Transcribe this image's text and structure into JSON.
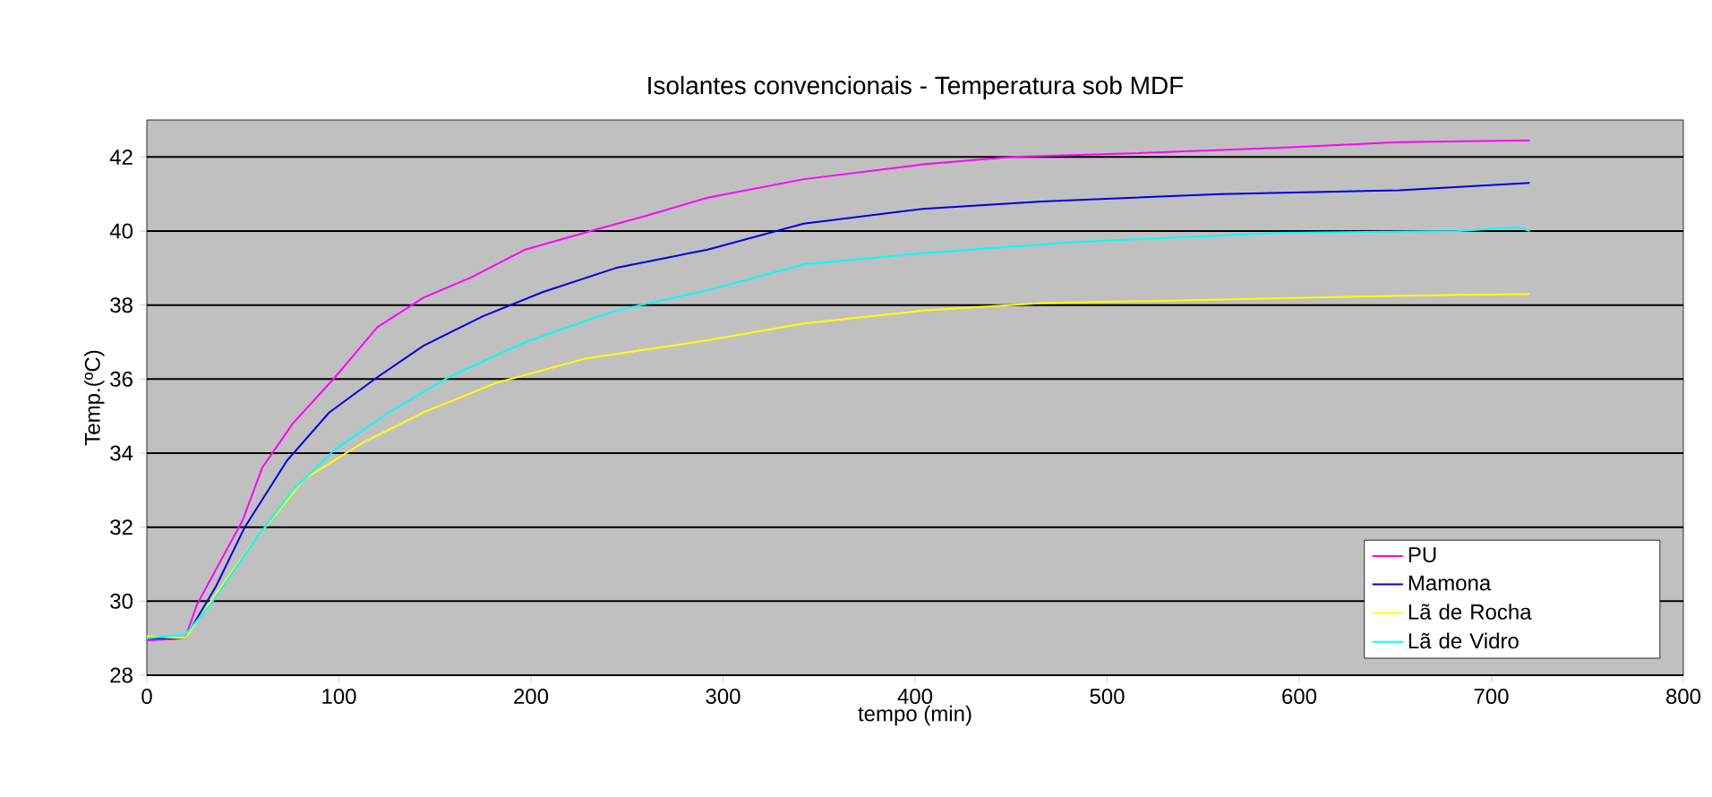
{
  "chart_data": {
    "type": "line",
    "title": "Isolantes convencionais - Temperatura sob MDF",
    "xlabel": "tempo (min)",
    "ylabel": "Temp.(ºC)",
    "xlim": [
      0,
      800
    ],
    "xticks": [
      0,
      100,
      200,
      300,
      400,
      500,
      600,
      700,
      800
    ],
    "ylim": [
      28,
      43
    ],
    "yticks": [
      28,
      30,
      32,
      34,
      36,
      38,
      40,
      42
    ],
    "grid": "y",
    "legend": "bottom right",
    "marker": "none",
    "line_style": "solid",
    "series": [
      {
        "name": "PU",
        "color": "#ff00ff",
        "x": [
          0,
          20,
          26,
          50,
          60,
          76,
          98,
          120,
          144,
          169,
          197,
          231,
          259,
          292,
          342,
          404,
          450,
          513,
          590,
          652,
          720
        ],
        "values": [
          28.94,
          29.0,
          29.9,
          32.2,
          33.6,
          34.8,
          36.05,
          37.4,
          38.2,
          38.75,
          39.5,
          40.0,
          40.4,
          40.9,
          41.4,
          41.8,
          42.0,
          42.1,
          42.25,
          42.4,
          42.45
        ]
      },
      {
        "name": "Mamona",
        "color": "#0000e0",
        "x": [
          0,
          20,
          36,
          51,
          73,
          95,
          120,
          144,
          175,
          206,
          244,
          292,
          342,
          404,
          466,
          559,
          652,
          720
        ],
        "values": [
          29.0,
          29.0,
          30.4,
          32.0,
          33.8,
          35.1,
          36.05,
          36.9,
          37.7,
          38.35,
          39.0,
          39.5,
          40.2,
          40.6,
          40.8,
          41.0,
          41.1,
          41.3
        ]
      },
      {
        "name": "Lã de Rocha",
        "color": "#ffff00",
        "x": [
          0,
          20,
          36,
          57,
          82,
          113,
          144,
          182,
          228,
          292,
          342,
          404,
          466,
          559,
          652,
          720
        ],
        "values": [
          29.05,
          29.0,
          30.2,
          31.7,
          33.3,
          34.3,
          35.1,
          35.9,
          36.55,
          37.05,
          37.5,
          37.85,
          38.05,
          38.15,
          38.25,
          38.3
        ]
      },
      {
        "name": "Lã de Vidro",
        "color": "#00ffff",
        "x": [
          0,
          20,
          33,
          57,
          76,
          98,
          126,
          157,
          197,
          244,
          292,
          342,
          404,
          482,
          590,
          683,
          714,
          720
        ],
        "values": [
          29.0,
          29.1,
          29.9,
          31.7,
          33.0,
          34.1,
          35.1,
          36.05,
          37.0,
          37.85,
          38.4,
          39.1,
          39.4,
          39.7,
          39.95,
          40.0,
          40.1,
          40.0
        ]
      }
    ]
  }
}
